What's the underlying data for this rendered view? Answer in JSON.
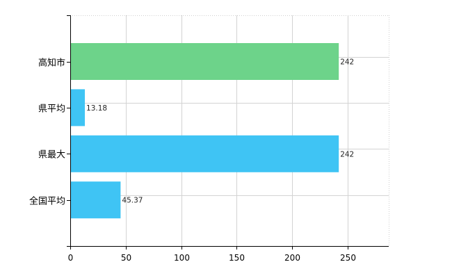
{
  "chart_data": {
    "type": "bar",
    "orientation": "horizontal",
    "categories": [
      "高知市",
      "県平均",
      "県最大",
      "全国平均"
    ],
    "values": [
      242,
      13.18,
      242,
      45.37
    ],
    "value_labels": [
      "242",
      "13.18",
      "242",
      "45.37"
    ],
    "colors": [
      "#6dd38a",
      "#3fc4f4",
      "#3fc4f4",
      "#3fc4f4"
    ],
    "xlim": [
      0,
      287
    ],
    "xticks": [
      "0",
      "50",
      "100",
      "150",
      "200",
      "250"
    ],
    "grid": true,
    "title": "",
    "xlabel": "",
    "ylabel": ""
  }
}
